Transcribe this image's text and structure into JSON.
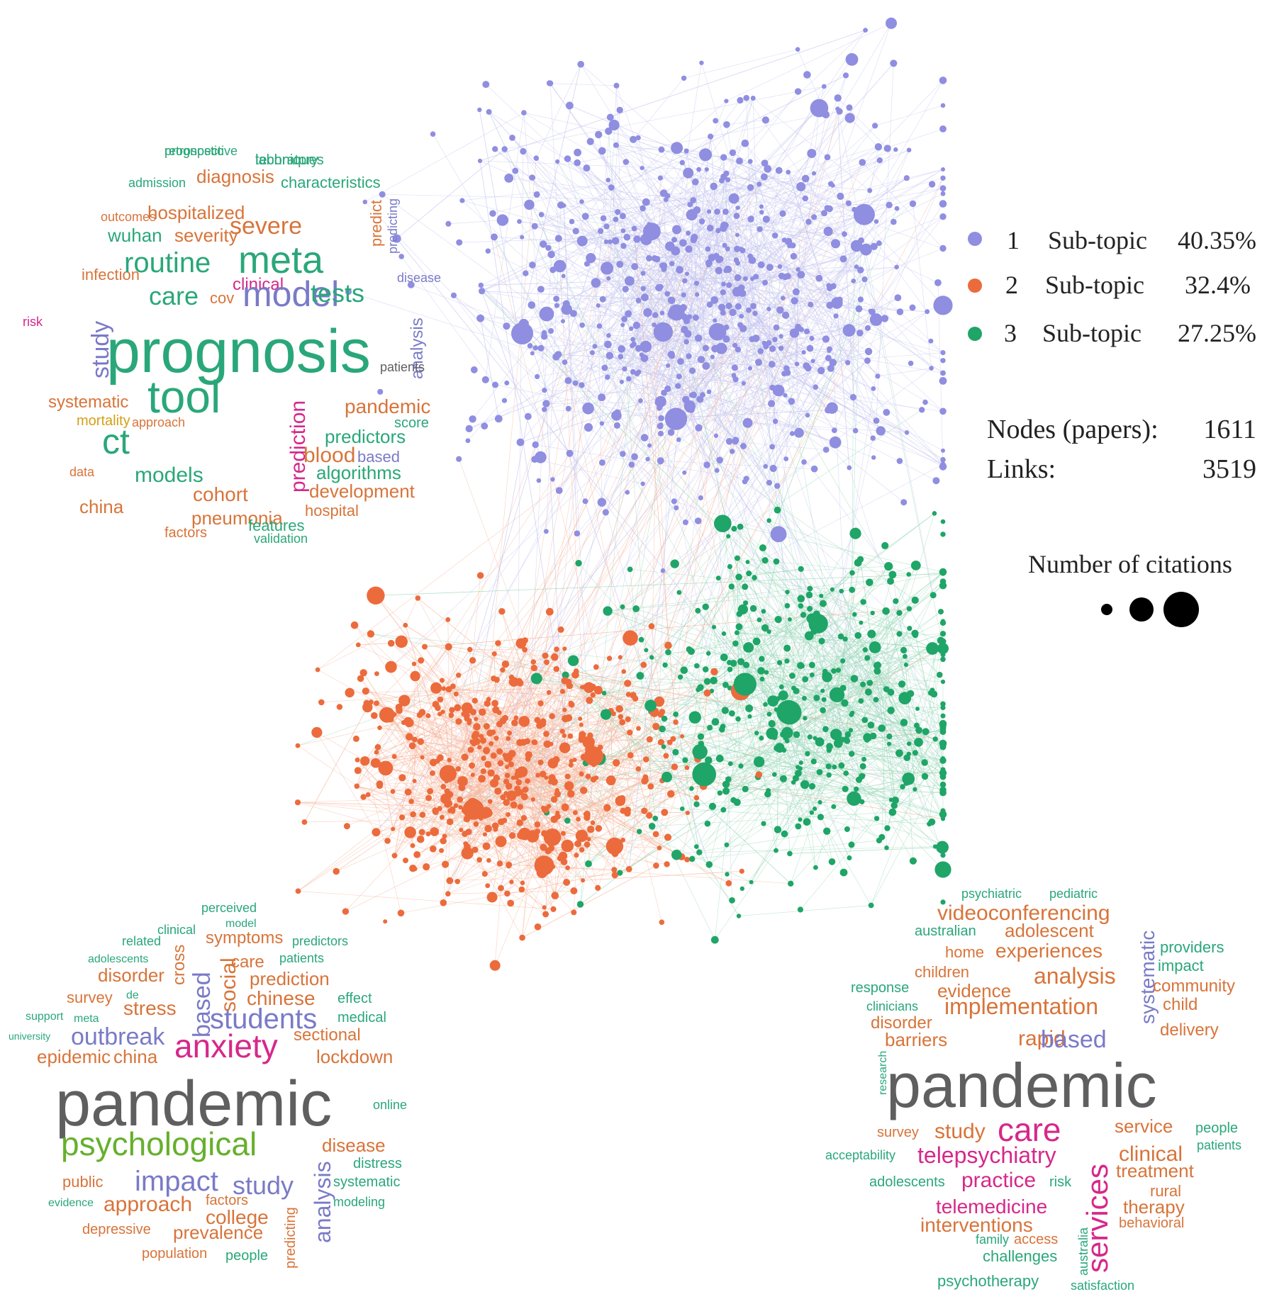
{
  "colors": {
    "topic1": "#8f8ee0",
    "topic2": "#ec6b3c",
    "topic3": "#1fa567",
    "wc_gray": "#5f5f5f",
    "wc_orange": "#d8743a",
    "wc_green": "#2aa77a",
    "wc_blue": "#7a7ac8",
    "wc_magenta": "#d6288a",
    "wc_gold": "#d4a017",
    "wc_lime": "#66b02c"
  },
  "legend": {
    "items": [
      {
        "number": "1",
        "label": "Sub-topic",
        "percent": "40.35%",
        "color_key": "topic1"
      },
      {
        "number": "2",
        "label": "Sub-topic",
        "percent": "32.4%",
        "color_key": "topic2"
      },
      {
        "number": "3",
        "label": "Sub-topic",
        "percent": "27.25%",
        "color_key": "topic3"
      }
    ],
    "nodes_label": "Nodes (papers):",
    "nodes_value": "1611",
    "links_label": "Links:",
    "links_value": "3519",
    "citations_label": "Number of citations"
  },
  "network": {
    "nodes_total": 1611,
    "links_total": 3519,
    "clusters": [
      {
        "name": "1",
        "share_pct": 40.35
      },
      {
        "name": "2",
        "share_pct": 32.4
      },
      {
        "name": "3",
        "share_pct": 27.25
      }
    ]
  },
  "wordclouds": [
    {
      "name": "topic1",
      "words": [
        {
          "text": "retrospective",
          "c": "wc_green"
        },
        {
          "text": "laboratory",
          "c": "wc_green"
        },
        {
          "text": "admission",
          "c": "wc_green"
        },
        {
          "text": "diagnosis",
          "c": "wc_orange"
        },
        {
          "text": "characteristics",
          "c": "wc_green"
        },
        {
          "text": "outcomes",
          "c": "wc_orange"
        },
        {
          "text": "hospitalized",
          "c": "wc_orange"
        },
        {
          "text": "wuhan",
          "c": "wc_green"
        },
        {
          "text": "severity",
          "c": "wc_orange"
        },
        {
          "text": "severe",
          "c": "wc_orange"
        },
        {
          "text": "predict",
          "c": "wc_orange"
        },
        {
          "text": "predicting",
          "c": "wc_blue"
        },
        {
          "text": "infection",
          "c": "wc_orange"
        },
        {
          "text": "routine",
          "c": "wc_green"
        },
        {
          "text": "meta",
          "c": "wc_green"
        },
        {
          "text": "disease",
          "c": "wc_blue"
        },
        {
          "text": "clinical",
          "c": "wc_magenta"
        },
        {
          "text": "care",
          "c": "wc_green"
        },
        {
          "text": "cov",
          "c": "wc_orange"
        },
        {
          "text": "model",
          "c": "wc_blue"
        },
        {
          "text": "tests",
          "c": "wc_green"
        },
        {
          "text": "risk",
          "c": "wc_magenta"
        },
        {
          "text": "study",
          "c": "wc_blue"
        },
        {
          "text": "prognosis",
          "c": "wc_green"
        },
        {
          "text": "analysis",
          "c": "wc_blue"
        },
        {
          "text": "patients",
          "c": "wc_gray"
        },
        {
          "text": "systematic",
          "c": "wc_orange"
        },
        {
          "text": "tool",
          "c": "wc_green"
        },
        {
          "text": "pandemic",
          "c": "wc_orange"
        },
        {
          "text": "mortality",
          "c": "wc_gold"
        },
        {
          "text": "approach",
          "c": "wc_orange"
        },
        {
          "text": "score",
          "c": "wc_green"
        },
        {
          "text": "ct",
          "c": "wc_green"
        },
        {
          "text": "predictors",
          "c": "wc_green"
        },
        {
          "text": "prediction",
          "c": "wc_magenta"
        },
        {
          "text": "blood",
          "c": "wc_orange"
        },
        {
          "text": "based",
          "c": "wc_blue"
        },
        {
          "text": "data",
          "c": "wc_orange"
        },
        {
          "text": "models",
          "c": "wc_green"
        },
        {
          "text": "algorithms",
          "c": "wc_green"
        },
        {
          "text": "development",
          "c": "wc_orange"
        },
        {
          "text": "cohort",
          "c": "wc_orange"
        },
        {
          "text": "china",
          "c": "wc_orange"
        },
        {
          "text": "hospital",
          "c": "wc_orange"
        },
        {
          "text": "pneumonia",
          "c": "wc_orange"
        },
        {
          "text": "features",
          "c": "wc_green"
        },
        {
          "text": "factors",
          "c": "wc_orange"
        },
        {
          "text": "validation",
          "c": "wc_green"
        },
        {
          "text": "prognostic",
          "c": "wc_green"
        },
        {
          "text": "techniques",
          "c": "wc_green"
        }
      ]
    },
    {
      "name": "topic2",
      "words": [
        {
          "text": "perceived",
          "c": "wc_green"
        },
        {
          "text": "model",
          "c": "wc_green"
        },
        {
          "text": "clinical",
          "c": "wc_green"
        },
        {
          "text": "related",
          "c": "wc_green"
        },
        {
          "text": "symptoms",
          "c": "wc_orange"
        },
        {
          "text": "predictors",
          "c": "wc_green"
        },
        {
          "text": "adolescents",
          "c": "wc_green"
        },
        {
          "text": "cross",
          "c": "wc_orange"
        },
        {
          "text": "care",
          "c": "wc_orange"
        },
        {
          "text": "patients",
          "c": "wc_green"
        },
        {
          "text": "disorder",
          "c": "wc_orange"
        },
        {
          "text": "based",
          "c": "wc_blue"
        },
        {
          "text": "social",
          "c": "wc_orange"
        },
        {
          "text": "prediction",
          "c": "wc_orange"
        },
        {
          "text": "de",
          "c": "wc_green"
        },
        {
          "text": "survey",
          "c": "wc_orange"
        },
        {
          "text": "chinese",
          "c": "wc_orange"
        },
        {
          "text": "effect",
          "c": "wc_green"
        },
        {
          "text": "stress",
          "c": "wc_orange"
        },
        {
          "text": "support",
          "c": "wc_green"
        },
        {
          "text": "meta",
          "c": "wc_green"
        },
        {
          "text": "students",
          "c": "wc_blue"
        },
        {
          "text": "medical",
          "c": "wc_green"
        },
        {
          "text": "university",
          "c": "wc_green"
        },
        {
          "text": "outbreak",
          "c": "wc_blue"
        },
        {
          "text": "anxiety",
          "c": "wc_magenta"
        },
        {
          "text": "sectional",
          "c": "wc_orange"
        },
        {
          "text": "epidemic",
          "c": "wc_orange"
        },
        {
          "text": "china",
          "c": "wc_orange"
        },
        {
          "text": "lockdown",
          "c": "wc_orange"
        },
        {
          "text": "pandemic",
          "c": "wc_gray"
        },
        {
          "text": "online",
          "c": "wc_green"
        },
        {
          "text": "psychological",
          "c": "wc_lime"
        },
        {
          "text": "disease",
          "c": "wc_orange"
        },
        {
          "text": "distress",
          "c": "wc_green"
        },
        {
          "text": "analysis",
          "c": "wc_blue"
        },
        {
          "text": "public",
          "c": "wc_orange"
        },
        {
          "text": "impact",
          "c": "wc_blue"
        },
        {
          "text": "study",
          "c": "wc_blue"
        },
        {
          "text": "systematic",
          "c": "wc_green"
        },
        {
          "text": "evidence",
          "c": "wc_green"
        },
        {
          "text": "approach",
          "c": "wc_orange"
        },
        {
          "text": "factors",
          "c": "wc_orange"
        },
        {
          "text": "modeling",
          "c": "wc_green"
        },
        {
          "text": "college",
          "c": "wc_orange"
        },
        {
          "text": "predicting",
          "c": "wc_orange"
        },
        {
          "text": "depressive",
          "c": "wc_orange"
        },
        {
          "text": "prevalence",
          "c": "wc_orange"
        },
        {
          "text": "population",
          "c": "wc_orange"
        },
        {
          "text": "people",
          "c": "wc_green"
        }
      ]
    },
    {
      "name": "topic3",
      "words": [
        {
          "text": "psychiatric",
          "c": "wc_green"
        },
        {
          "text": "pediatric",
          "c": "wc_green"
        },
        {
          "text": "videoconferencing",
          "c": "wc_orange"
        },
        {
          "text": "australian",
          "c": "wc_green"
        },
        {
          "text": "adolescent",
          "c": "wc_orange"
        },
        {
          "text": "systematic",
          "c": "wc_blue"
        },
        {
          "text": "providers",
          "c": "wc_green"
        },
        {
          "text": "home",
          "c": "wc_orange"
        },
        {
          "text": "experiences",
          "c": "wc_orange"
        },
        {
          "text": "impact",
          "c": "wc_green"
        },
        {
          "text": "children",
          "c": "wc_orange"
        },
        {
          "text": "analysis",
          "c": "wc_orange"
        },
        {
          "text": "community",
          "c": "wc_orange"
        },
        {
          "text": "response",
          "c": "wc_green"
        },
        {
          "text": "evidence",
          "c": "wc_orange"
        },
        {
          "text": "child",
          "c": "wc_orange"
        },
        {
          "text": "clinicians",
          "c": "wc_green"
        },
        {
          "text": "implementation",
          "c": "wc_orange"
        },
        {
          "text": "disorder",
          "c": "wc_orange"
        },
        {
          "text": "delivery",
          "c": "wc_orange"
        },
        {
          "text": "barriers",
          "c": "wc_orange"
        },
        {
          "text": "rapid",
          "c": "wc_orange"
        },
        {
          "text": "based",
          "c": "wc_blue"
        },
        {
          "text": "research",
          "c": "wc_green"
        },
        {
          "text": "pandemic",
          "c": "wc_gray"
        },
        {
          "text": "survey",
          "c": "wc_orange"
        },
        {
          "text": "study",
          "c": "wc_orange"
        },
        {
          "text": "care",
          "c": "wc_magenta"
        },
        {
          "text": "service",
          "c": "wc_orange"
        },
        {
          "text": "people",
          "c": "wc_green"
        },
        {
          "text": "acceptability",
          "c": "wc_green"
        },
        {
          "text": "telepsychiatry",
          "c": "wc_magenta"
        },
        {
          "text": "services",
          "c": "wc_magenta"
        },
        {
          "text": "clinical",
          "c": "wc_orange"
        },
        {
          "text": "patients",
          "c": "wc_green"
        },
        {
          "text": "adolescents",
          "c": "wc_green"
        },
        {
          "text": "practice",
          "c": "wc_magenta"
        },
        {
          "text": "risk",
          "c": "wc_green"
        },
        {
          "text": "treatment",
          "c": "wc_orange"
        },
        {
          "text": "rural",
          "c": "wc_orange"
        },
        {
          "text": "telemedicine",
          "c": "wc_magenta"
        },
        {
          "text": "therapy",
          "c": "wc_orange"
        },
        {
          "text": "interventions",
          "c": "wc_orange"
        },
        {
          "text": "australia",
          "c": "wc_green"
        },
        {
          "text": "behavioral",
          "c": "wc_orange"
        },
        {
          "text": "family",
          "c": "wc_green"
        },
        {
          "text": "access",
          "c": "wc_orange"
        },
        {
          "text": "challenges",
          "c": "wc_green"
        },
        {
          "text": "psychotherapy",
          "c": "wc_green"
        },
        {
          "text": "satisfaction",
          "c": "wc_green"
        }
      ]
    }
  ]
}
